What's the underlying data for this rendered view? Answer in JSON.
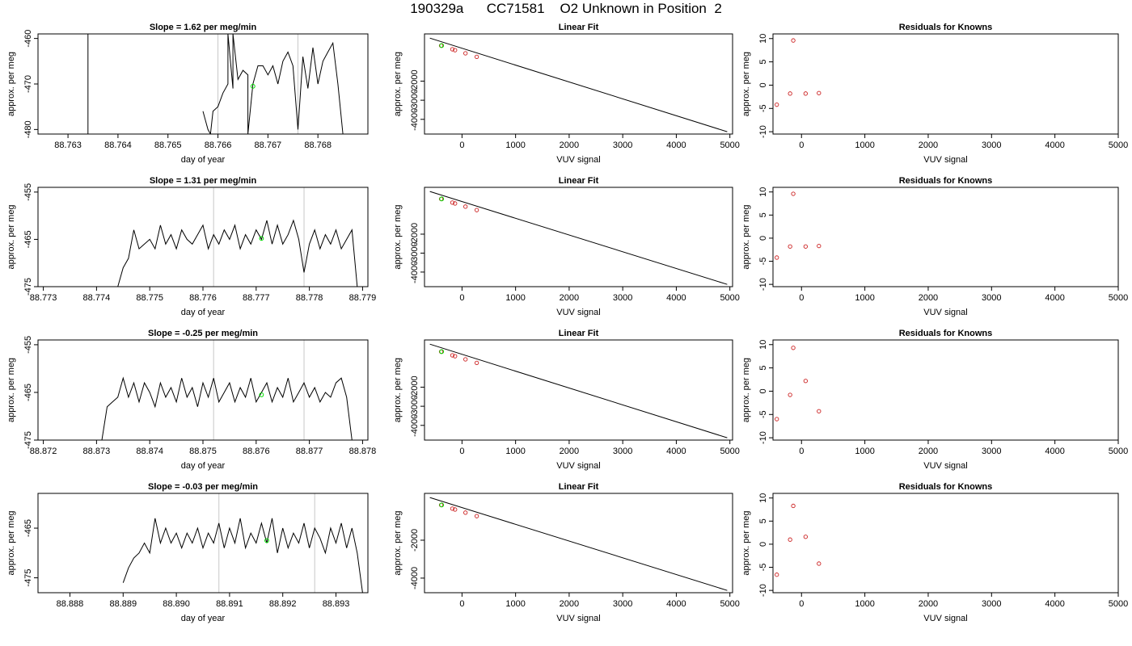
{
  "title": "190329a      CC71581    O2 Unknown in Position  2",
  "colors": {
    "trace": "#000000",
    "vline": "#c8c8c8",
    "green": "#00dd00",
    "red": "#cc2222"
  },
  "chart_data": [
    {
      "type": "line",
      "title": "Slope =  1.62  per meg/min",
      "xlabel": "day of year",
      "ylabel": "approx. per meg",
      "xlim": [
        88.7624,
        88.769
      ],
      "ylim": [
        -481,
        -459
      ],
      "xticks": [
        "88.763",
        "88.764",
        "88.765",
        "88.766",
        "88.767",
        "88.768"
      ],
      "xtick_values": [
        88.763,
        88.764,
        88.765,
        88.766,
        88.767,
        88.768
      ],
      "yticks": [
        "-480",
        "-470",
        "-460"
      ],
      "ytick_values": [
        -480,
        -470,
        -460
      ],
      "vlines": [
        88.766,
        88.7676
      ],
      "green_point": [
        88.7667,
        -470.5
      ],
      "series": [
        {
          "x": [
            88.7634,
            88.7634
          ],
          "y": [
            -459,
            -481
          ]
        },
        {
          "x": [
            88.7657,
            88.7658,
            88.76585,
            88.7659,
            88.766,
            88.7661,
            88.7662,
            88.7662,
            88.7663,
            88.7663,
            88.7664,
            88.7665,
            88.7666,
            88.7666,
            88.7667,
            88.7668,
            88.7669,
            88.767,
            88.7671,
            88.7672,
            88.7673,
            88.7674,
            88.7675,
            88.7676,
            88.7677,
            88.7678,
            88.7679,
            88.768,
            88.7681,
            88.7682,
            88.7683,
            88.7684,
            88.7685
          ],
          "y": [
            -476,
            -480,
            -481,
            -476,
            -475,
            -472,
            -470,
            -459,
            -471,
            -459,
            -469,
            -467,
            -468,
            -481,
            -470,
            -466,
            -466,
            -468,
            -466,
            -470,
            -465,
            -463,
            -466,
            -480,
            -464,
            -471,
            -462,
            -470,
            -465,
            -463,
            -461,
            -470,
            -481
          ]
        }
      ]
    },
    {
      "type": "line",
      "title": "Linear Fit",
      "xlabel": "VUV signal",
      "ylabel": "approx. per meg",
      "xlim": [
        -700,
        5050
      ],
      "ylim": [
        -4770,
        470
      ],
      "xticks": [
        "0",
        "1000",
        "2000",
        "3000",
        "4000",
        "5000"
      ],
      "xtick_values": [
        0,
        1000,
        2000,
        3000,
        4000,
        5000
      ],
      "yticks": [
        "-4000",
        "-3000",
        "-2000"
      ],
      "ytick_values": [
        -4000,
        -3000,
        -2000
      ],
      "fit_line": [
        [
          -600,
          250
        ],
        [
          4950,
          -4650
        ]
      ],
      "points": {
        "x": [
          -390,
          -180,
          -130,
          65,
          275
        ],
        "y": [
          -145,
          -335,
          -380,
          -545,
          -730
        ]
      },
      "green_point": [
        -380,
        -140
      ]
    },
    {
      "type": "scatter",
      "title": "Residuals for Knowns",
      "xlabel": "VUV signal",
      "ylabel": "approx. per meg",
      "xlim": [
        -450,
        5000
      ],
      "ylim": [
        -10.5,
        11
      ],
      "xticks": [
        "0",
        "1000",
        "2000",
        "3000",
        "4000",
        "5000"
      ],
      "xtick_values": [
        0,
        1000,
        2000,
        3000,
        4000,
        5000
      ],
      "yticks": [
        "-10",
        "-5",
        "0",
        "5",
        "10"
      ],
      "ytick_values": [
        -10,
        -5,
        0,
        5,
        10
      ],
      "points": {
        "x": [
          -390,
          -180,
          -130,
          65,
          275
        ],
        "y": [
          -4.2,
          -1.8,
          9.6,
          -1.8,
          -1.7
        ]
      }
    },
    {
      "type": "line",
      "title": "Slope =  1.31  per meg/min",
      "xlabel": "day of year",
      "ylabel": "approx. per meg",
      "xlim": [
        88.7729,
        88.7791
      ],
      "ylim": [
        -475,
        -454
      ],
      "xticks": [
        "88.773",
        "88.774",
        "88.775",
        "88.776",
        "88.777",
        "88.778",
        "88.779"
      ],
      "xtick_values": [
        88.773,
        88.774,
        88.775,
        88.776,
        88.777,
        88.778,
        88.779
      ],
      "yticks": [
        "-475",
        "-465",
        "-455"
      ],
      "ytick_values": [
        -475,
        -465,
        -455
      ],
      "vlines": [
        88.7762,
        88.7779
      ],
      "green_point": [
        88.7771,
        -464.8
      ],
      "series": [
        {
          "x": [
            88.7744,
            88.7745,
            88.7746,
            88.7747,
            88.7748,
            88.7749,
            88.775,
            88.7751,
            88.7752,
            88.7753,
            88.7754,
            88.7755,
            88.7756,
            88.7757,
            88.7758,
            88.7759,
            88.776,
            88.7761,
            88.7762,
            88.7763,
            88.7764,
            88.7765,
            88.7766,
            88.7767,
            88.7768,
            88.7769,
            88.777,
            88.7771,
            88.7772,
            88.7773,
            88.7774,
            88.7775,
            88.7776,
            88.7777,
            88.7778,
            88.7779,
            88.778,
            88.7781,
            88.7782,
            88.7783,
            88.7784,
            88.7785,
            88.7786,
            88.7787,
            88.7788,
            88.7789
          ],
          "y": [
            -475,
            -471,
            -469,
            -463,
            -467,
            -466,
            -465,
            -467,
            -462,
            -466,
            -464,
            -467,
            -463,
            -465,
            -466,
            -464,
            -462,
            -467,
            -464,
            -466,
            -463,
            -465,
            -462,
            -467,
            -464,
            -466,
            -463,
            -465,
            -461,
            -466,
            -462,
            -466,
            -464,
            -461,
            -465,
            -472,
            -466,
            -463,
            -467,
            -464,
            -466,
            -463,
            -467,
            -465,
            -463,
            -475
          ]
        }
      ]
    },
    {
      "type": "line",
      "title": "Linear Fit",
      "xlabel": "VUV signal",
      "ylabel": "approx. per meg",
      "xlim": [
        -700,
        5050
      ],
      "ylim": [
        -4770,
        470
      ],
      "xticks": [
        "0",
        "1000",
        "2000",
        "3000",
        "4000",
        "5000"
      ],
      "xtick_values": [
        0,
        1000,
        2000,
        3000,
        4000,
        5000
      ],
      "yticks": [
        "-4000",
        "-3000",
        "-2000"
      ],
      "ytick_values": [
        -4000,
        -3000,
        -2000
      ],
      "fit_line": [
        [
          -600,
          250
        ],
        [
          4950,
          -4650
        ]
      ],
      "points": {
        "x": [
          -390,
          -180,
          -130,
          65,
          275
        ],
        "y": [
          -145,
          -335,
          -380,
          -545,
          -730
        ]
      },
      "green_point": [
        -380,
        -140
      ]
    },
    {
      "type": "scatter",
      "title": "Residuals for Knowns",
      "xlabel": "VUV signal",
      "ylabel": "approx. per meg",
      "xlim": [
        -450,
        5000
      ],
      "ylim": [
        -10.5,
        11
      ],
      "xticks": [
        "0",
        "1000",
        "2000",
        "3000",
        "4000",
        "5000"
      ],
      "xtick_values": [
        0,
        1000,
        2000,
        3000,
        4000,
        5000
      ],
      "yticks": [
        "-10",
        "-5",
        "0",
        "5",
        "10"
      ],
      "ytick_values": [
        -10,
        -5,
        0,
        5,
        10
      ],
      "points": {
        "x": [
          -390,
          -180,
          -130,
          65,
          275
        ],
        "y": [
          -4.2,
          -1.8,
          9.6,
          -1.8,
          -1.7
        ]
      }
    },
    {
      "type": "line",
      "title": "Slope =  -0.25  per meg/min",
      "xlabel": "day of year",
      "ylabel": "approx. per meg",
      "xlim": [
        88.8719,
        88.8781
      ],
      "ylim": [
        -475,
        -454
      ],
      "xticks": [
        "88.872",
        "88.873",
        "88.874",
        "88.875",
        "88.876",
        "88.877",
        "88.878"
      ],
      "xtick_values": [
        88.872,
        88.873,
        88.874,
        88.875,
        88.876,
        88.877,
        88.878
      ],
      "yticks": [
        "-475",
        "-465",
        "-455"
      ],
      "ytick_values": [
        -475,
        -465,
        -455
      ],
      "vlines": [
        88.8752,
        88.8769
      ],
      "green_point": [
        88.8761,
        -465.5
      ],
      "series": [
        {
          "x": [
            88.8731,
            88.8732,
            88.8733,
            88.8734,
            88.8735,
            88.8736,
            88.8737,
            88.8738,
            88.8739,
            88.874,
            88.8741,
            88.8742,
            88.8743,
            88.8744,
            88.8745,
            88.8746,
            88.8747,
            88.8748,
            88.8749,
            88.875,
            88.8751,
            88.8752,
            88.8753,
            88.8754,
            88.8755,
            88.8756,
            88.8757,
            88.8758,
            88.8759,
            88.876,
            88.8761,
            88.8762,
            88.8763,
            88.8764,
            88.8765,
            88.8766,
            88.8767,
            88.8768,
            88.8769,
            88.877,
            88.8771,
            88.8772,
            88.8773,
            88.8774,
            88.8775,
            88.8776,
            88.8777,
            88.8778
          ],
          "y": [
            -475,
            -468,
            -467,
            -466,
            -462,
            -466,
            -463,
            -467,
            -463,
            -465,
            -468,
            -463,
            -466,
            -464,
            -467,
            -462,
            -466,
            -464,
            -468,
            -463,
            -466,
            -462,
            -467,
            -465,
            -463,
            -467,
            -464,
            -466,
            -462,
            -467,
            -465,
            -463,
            -467,
            -464,
            -466,
            -462,
            -467,
            -465,
            -463,
            -466,
            -464,
            -467,
            -465,
            -466,
            -463,
            -462,
            -466,
            -475
          ]
        }
      ]
    },
    {
      "type": "line",
      "title": "Linear Fit",
      "xlabel": "VUV signal",
      "ylabel": "approx. per meg",
      "xlim": [
        -700,
        5050
      ],
      "ylim": [
        -4770,
        470
      ],
      "xticks": [
        "0",
        "1000",
        "2000",
        "3000",
        "4000",
        "5000"
      ],
      "xtick_values": [
        0,
        1000,
        2000,
        3000,
        4000,
        5000
      ],
      "yticks": [
        "-4000",
        "-3000",
        "-2000"
      ],
      "ytick_values": [
        -4000,
        -3000,
        -2000
      ],
      "fit_line": [
        [
          -600,
          250
        ],
        [
          4950,
          -4650
        ]
      ],
      "points": {
        "x": [
          -390,
          -180,
          -130,
          65,
          275
        ],
        "y": [
          -145,
          -335,
          -380,
          -545,
          -730
        ]
      },
      "green_point": [
        -380,
        -140
      ]
    },
    {
      "type": "scatter",
      "title": "Residuals for Knowns",
      "xlabel": "VUV signal",
      "ylabel": "approx. per meg",
      "xlim": [
        -450,
        5000
      ],
      "ylim": [
        -10.5,
        11
      ],
      "xticks": [
        "0",
        "1000",
        "2000",
        "3000",
        "4000",
        "5000"
      ],
      "xtick_values": [
        0,
        1000,
        2000,
        3000,
        4000,
        5000
      ],
      "yticks": [
        "-10",
        "-5",
        "0",
        "5",
        "10"
      ],
      "ytick_values": [
        -10,
        -5,
        0,
        5,
        10
      ],
      "points": {
        "x": [
          -390,
          -180,
          -130,
          65,
          275
        ],
        "y": [
          -6.0,
          -0.8,
          9.3,
          2.2,
          -4.3
        ]
      }
    },
    {
      "type": "line",
      "title": "Slope =  -0.03  per meg/min",
      "xlabel": "day of year",
      "ylabel": "approx. per meg",
      "xlim": [
        88.8874,
        88.8936
      ],
      "ylim": [
        -478,
        -458
      ],
      "xticks": [
        "88.888",
        "88.889",
        "88.890",
        "88.891",
        "88.892",
        "88.893"
      ],
      "xtick_values": [
        88.888,
        88.889,
        88.89,
        88.891,
        88.892,
        88.893
      ],
      "yticks": [
        "-475",
        "-465"
      ],
      "ytick_values": [
        -475,
        -465
      ],
      "vlines": [
        88.8908,
        88.8926
      ],
      "green_point": [
        88.8917,
        -467.5
      ],
      "series": [
        {
          "x": [
            88.889,
            88.8891,
            88.8892,
            88.8893,
            88.8894,
            88.8895,
            88.8896,
            88.8897,
            88.8898,
            88.8899,
            88.89,
            88.8901,
            88.8902,
            88.8903,
            88.8904,
            88.8905,
            88.8906,
            88.8907,
            88.8908,
            88.8909,
            88.891,
            88.8911,
            88.8912,
            88.8913,
            88.8914,
            88.8915,
            88.8916,
            88.8917,
            88.8918,
            88.8919,
            88.892,
            88.8921,
            88.8922,
            88.8923,
            88.8924,
            88.8925,
            88.8926,
            88.8927,
            88.8928,
            88.8929,
            88.893,
            88.8931,
            88.8932,
            88.8933,
            88.8934,
            88.8935
          ],
          "y": [
            -476,
            -473,
            -471,
            -470,
            -468,
            -470,
            -463,
            -468,
            -465,
            -468,
            -466,
            -469,
            -466,
            -468,
            -465,
            -469,
            -466,
            -468,
            -464,
            -469,
            -465,
            -468,
            -463,
            -469,
            -466,
            -468,
            -464,
            -468,
            -463,
            -470,
            -465,
            -469,
            -466,
            -468,
            -464,
            -469,
            -465,
            -467,
            -470,
            -465,
            -468,
            -464,
            -469,
            -465,
            -470,
            -478
          ]
        }
      ]
    },
    {
      "type": "line",
      "title": "Linear Fit",
      "xlabel": "VUV signal",
      "ylabel": "approx. per meg",
      "xlim": [
        -700,
        5050
      ],
      "ylim": [
        -4770,
        470
      ],
      "xticks": [
        "0",
        "1000",
        "2000",
        "3000",
        "4000",
        "5000"
      ],
      "xtick_values": [
        0,
        1000,
        2000,
        3000,
        4000,
        5000
      ],
      "yticks": [
        "-4000",
        "-2000"
      ],
      "ytick_values": [
        -4000,
        -2000
      ],
      "fit_line": [
        [
          -600,
          250
        ],
        [
          4950,
          -4650
        ]
      ],
      "points": {
        "x": [
          -390,
          -180,
          -130,
          65,
          275
        ],
        "y": [
          -145,
          -335,
          -380,
          -545,
          -730
        ]
      },
      "green_point": [
        -380,
        -140
      ]
    },
    {
      "type": "scatter",
      "title": "Residuals for Knowns",
      "xlabel": "VUV signal",
      "ylabel": "approx. per meg",
      "xlim": [
        -450,
        5000
      ],
      "ylim": [
        -10.5,
        11
      ],
      "xticks": [
        "0",
        "1000",
        "2000",
        "3000",
        "4000",
        "5000"
      ],
      "xtick_values": [
        0,
        1000,
        2000,
        3000,
        4000,
        5000
      ],
      "yticks": [
        "-10",
        "-5",
        "0",
        "5",
        "10"
      ],
      "ytick_values": [
        -10,
        -5,
        0,
        5,
        10
      ],
      "points": {
        "x": [
          -390,
          -180,
          -130,
          65,
          275
        ],
        "y": [
          -6.6,
          1.0,
          8.3,
          1.6,
          -4.2
        ]
      }
    }
  ]
}
